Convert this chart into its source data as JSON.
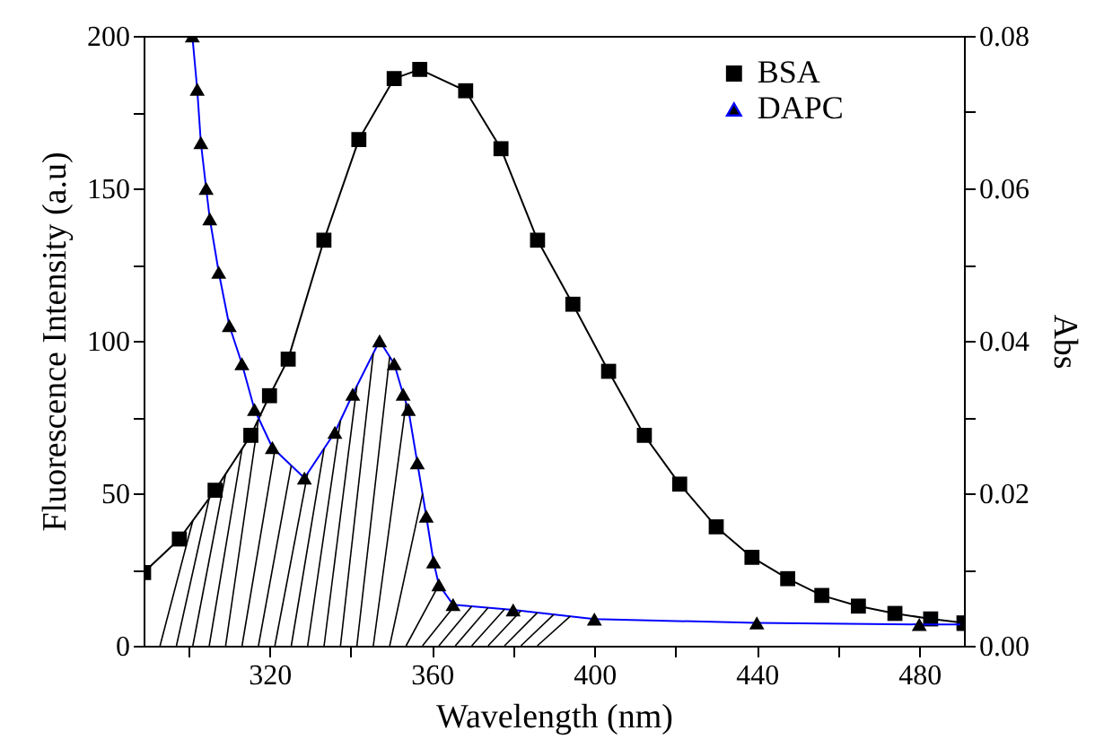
{
  "chart_data": {
    "type": "line",
    "xlabel": "Wavelength (nm)",
    "ylabel": "Fluorescence Intensity (a.u)",
    "y2label": "Abs",
    "xlim": [
      289,
      491
    ],
    "xticks": [
      {
        "value": 300,
        "label": null
      },
      320,
      {
        "value": 340,
        "label": null
      },
      360,
      {
        "value": 380,
        "label": null
      },
      400,
      {
        "value": 420,
        "label": null
      },
      440,
      {
        "value": 460,
        "label": null
      },
      480
    ],
    "ylim": [
      0,
      200
    ],
    "yticks": [
      0,
      {
        "value": 25,
        "label": null
      },
      50,
      {
        "value": 75,
        "label": null
      },
      100,
      {
        "value": 125,
        "label": null
      },
      150,
      {
        "value": 175,
        "label": null
      },
      200
    ],
    "y2lim": [
      0,
      0.08
    ],
    "y2ticks": [
      {
        "value": 0,
        "label": "0.00"
      },
      {
        "value": 0.01,
        "label": null
      },
      {
        "value": 0.02,
        "label": "0.02"
      },
      {
        "value": 0.03,
        "label": null
      },
      {
        "value": 0.04,
        "label": "0.04"
      },
      {
        "value": 0.05,
        "label": null
      },
      {
        "value": 0.06,
        "label": "0.06"
      },
      {
        "value": 0.07,
        "label": null
      },
      {
        "value": 0.08,
        "label": "0.08"
      }
    ],
    "legend": "top right",
    "series": [
      {
        "name": "BSA",
        "color": "#000000",
        "marker": "square",
        "x": [
          289,
          297.8,
          306.6,
          315.4,
          320,
          324.6,
          333.4,
          342,
          350.7,
          357,
          368.3,
          377,
          386,
          394.7,
          403.5,
          412.3,
          421,
          430,
          438.8,
          447.6,
          456,
          465,
          474,
          482.8,
          491
        ],
        "values": [
          24,
          35,
          51,
          69,
          82,
          94,
          133,
          166,
          186,
          189,
          182,
          163,
          133,
          112,
          90,
          69,
          53,
          39,
          29,
          22,
          16.5,
          13,
          10.6,
          8.8,
          7.5
        ]
      },
      {
        "name": "DAPC",
        "color": "#0000ff",
        "marker": "triangle",
        "axis": "y2",
        "x": [
          301,
          302.2,
          303.1,
          304.4,
          305.3,
          307.5,
          310.1,
          313.2,
          316.3,
          320.7,
          328.6,
          336.1,
          340.5,
          347.1,
          350.7,
          352.9,
          354.2,
          356.4,
          358.6,
          360.4,
          361.7,
          365.2,
          380,
          400,
          440,
          480,
          491
        ],
        "values": [
          0.08,
          0.073,
          0.066,
          0.06,
          0.056,
          0.049,
          0.042,
          0.037,
          0.031,
          0.026,
          0.022,
          0.028,
          0.033,
          0.04,
          0.037,
          0.033,
          0.031,
          0.024,
          0.017,
          0.011,
          0.008,
          0.0054,
          0.0047,
          0.0035,
          0.003,
          0.0028,
          0.0028
        ]
      }
    ]
  }
}
